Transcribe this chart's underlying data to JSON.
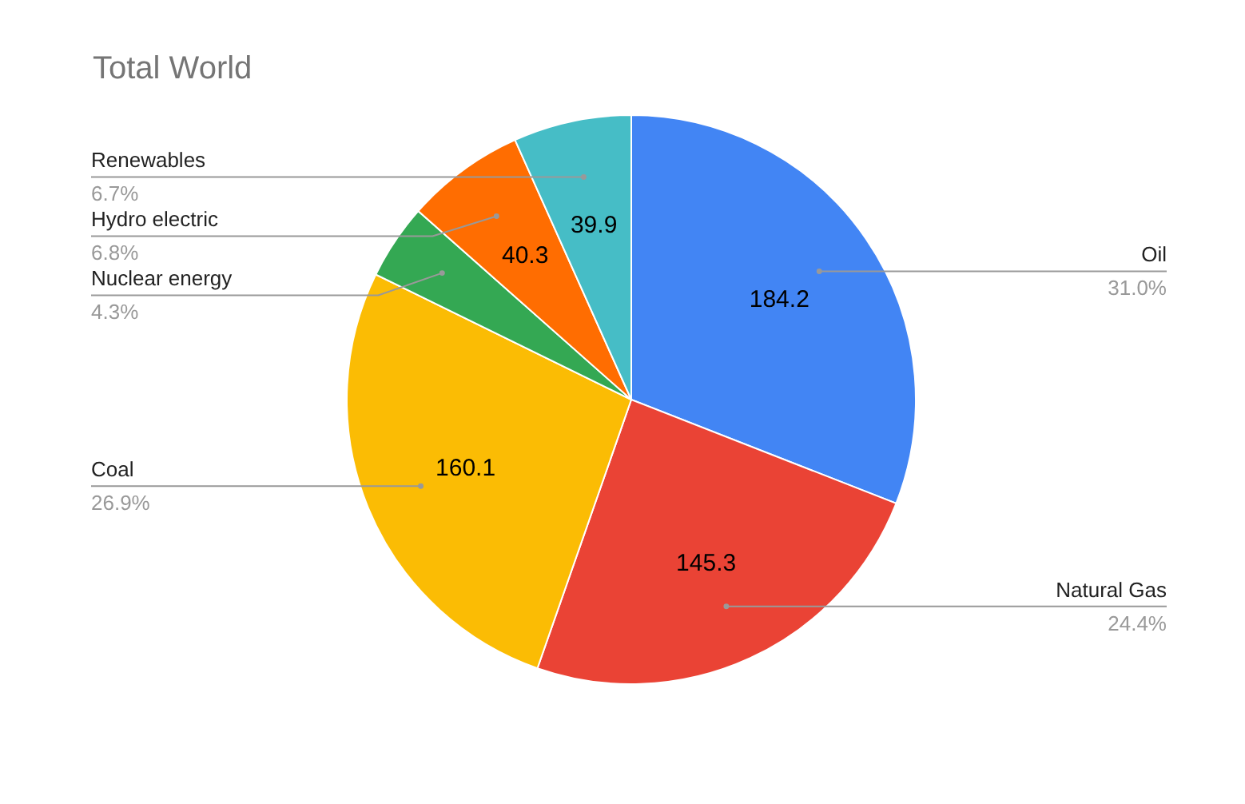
{
  "chart_data": {
    "type": "pie",
    "title": "Total World",
    "categories": [
      "Oil",
      "Natural Gas",
      "Coal",
      "Nuclear energy",
      "Hydro electric",
      "Renewables"
    ],
    "values": [
      184.2,
      145.3,
      160.1,
      25.5,
      40.3,
      39.9
    ],
    "value_labels": [
      "184.2",
      "145.3",
      "160.1",
      null,
      "40.3",
      "39.9"
    ],
    "colors": [
      "#4285f4",
      "#ea4335",
      "#fbbc04",
      "#34a853",
      "#ff6d01",
      "#46bdc6"
    ],
    "annotations": [
      "31.0%",
      "24.4%",
      "26.9%",
      "4.3%",
      "6.8%",
      "6.7%"
    ]
  }
}
